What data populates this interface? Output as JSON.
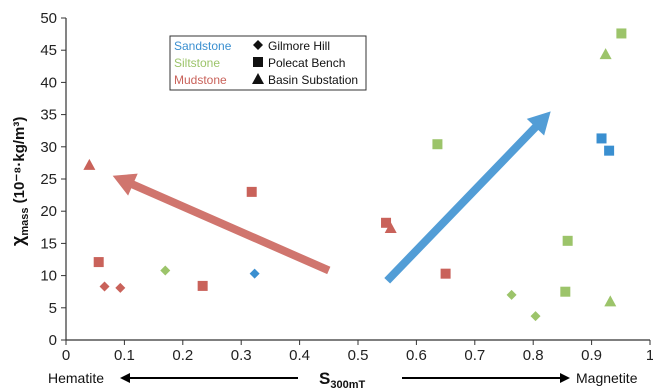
{
  "chart_data": {
    "type": "scatter",
    "xlabel": "S",
    "xlabel_sub": "300mT",
    "ylabel": "χ",
    "ylabel_sub": "mass",
    "ylabel_unit": " (10⁻⁸·kg/m³)",
    "xlim": [
      0,
      1
    ],
    "ylim": [
      0,
      50
    ],
    "x_ticks": [
      "0",
      "0.1",
      "0.2",
      "0.3",
      "0.4",
      "0.5",
      "0.6",
      "0.7",
      "0.8",
      "0.9",
      "1"
    ],
    "y_ticks": [
      "0",
      "5",
      "10",
      "15",
      "20",
      "25",
      "30",
      "35",
      "40",
      "45",
      "50"
    ],
    "grid": false,
    "legend_position": "top-left",
    "rock_types": [
      {
        "name": "Sandstone",
        "color": "#3a8fd0"
      },
      {
        "name": "Siltstone",
        "color": "#9cc46a"
      },
      {
        "name": "Mudstone",
        "color": "#c9625a"
      }
    ],
    "sites": [
      {
        "name": "Gilmore Hill",
        "marker": "diamond"
      },
      {
        "name": "Polecat Bench",
        "marker": "square"
      },
      {
        "name": "Basin Substation",
        "marker": "triangle"
      }
    ],
    "points": [
      {
        "x": 0.323,
        "y": 10.3,
        "rock": "Sandstone",
        "site": "Gilmore Hill"
      },
      {
        "x": 0.917,
        "y": 31.3,
        "rock": "Sandstone",
        "site": "Polecat Bench"
      },
      {
        "x": 0.93,
        "y": 29.4,
        "rock": "Sandstone",
        "site": "Polecat Bench"
      },
      {
        "x": 0.17,
        "y": 10.8,
        "rock": "Siltstone",
        "site": "Gilmore Hill"
      },
      {
        "x": 0.763,
        "y": 7.0,
        "rock": "Siltstone",
        "site": "Gilmore Hill"
      },
      {
        "x": 0.804,
        "y": 3.7,
        "rock": "Siltstone",
        "site": "Gilmore Hill"
      },
      {
        "x": 0.636,
        "y": 30.4,
        "rock": "Siltstone",
        "site": "Polecat Bench"
      },
      {
        "x": 0.859,
        "y": 15.4,
        "rock": "Siltstone",
        "site": "Polecat Bench"
      },
      {
        "x": 0.855,
        "y": 7.5,
        "rock": "Siltstone",
        "site": "Polecat Bench"
      },
      {
        "x": 0.951,
        "y": 47.6,
        "rock": "Siltstone",
        "site": "Polecat Bench"
      },
      {
        "x": 0.924,
        "y": 44.4,
        "rock": "Siltstone",
        "site": "Basin Substation"
      },
      {
        "x": 0.932,
        "y": 6.0,
        "rock": "Siltstone",
        "site": "Basin Substation"
      },
      {
        "x": 0.066,
        "y": 8.3,
        "rock": "Mudstone",
        "site": "Gilmore Hill"
      },
      {
        "x": 0.093,
        "y": 8.1,
        "rock": "Mudstone",
        "site": "Gilmore Hill"
      },
      {
        "x": 0.056,
        "y": 12.1,
        "rock": "Mudstone",
        "site": "Polecat Bench"
      },
      {
        "x": 0.234,
        "y": 8.4,
        "rock": "Mudstone",
        "site": "Polecat Bench"
      },
      {
        "x": 0.318,
        "y": 23.0,
        "rock": "Mudstone",
        "site": "Polecat Bench"
      },
      {
        "x": 0.548,
        "y": 18.2,
        "rock": "Mudstone",
        "site": "Polecat Bench"
      },
      {
        "x": 0.65,
        "y": 10.3,
        "rock": "Mudstone",
        "site": "Polecat Bench"
      },
      {
        "x": 0.04,
        "y": 27.2,
        "rock": "Mudstone",
        "site": "Basin Substation"
      },
      {
        "x": 0.556,
        "y": 17.4,
        "rock": "Mudstone",
        "site": "Basin Substation"
      }
    ],
    "trend_arrows": [
      {
        "rock": "Mudstone",
        "from": [
          0.45,
          10.8
        ],
        "to": [
          0.08,
          25.5
        ]
      },
      {
        "rock": "Sandstone",
        "from": [
          0.55,
          9.2
        ],
        "to": [
          0.83,
          35.5
        ]
      }
    ],
    "bottom_annotations": {
      "left": "Hematite",
      "right": "Magnetite"
    }
  }
}
